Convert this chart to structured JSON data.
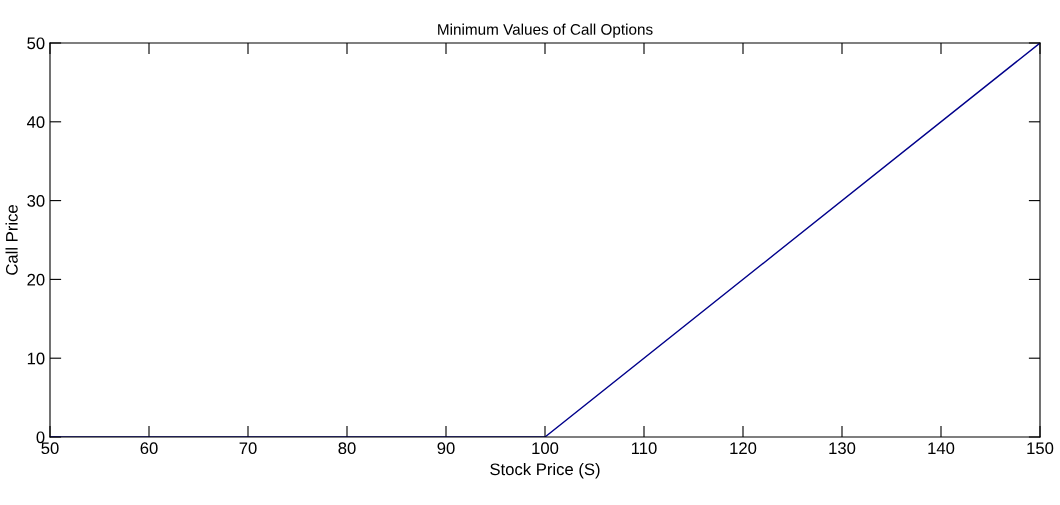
{
  "chart_data": {
    "type": "line",
    "title": "Minimum Values of Call Options",
    "xlabel": "Stock Price (S)",
    "ylabel": "Call Price",
    "x": [
      50,
      100,
      150
    ],
    "series": [
      {
        "color": "#00008b",
        "values": [
          0,
          0,
          50
        ]
      }
    ],
    "xlim": [
      50,
      150
    ],
    "ylim": [
      0,
      50
    ],
    "xticks": [
      50,
      60,
      70,
      80,
      90,
      100,
      110,
      120,
      130,
      140,
      150
    ],
    "yticks": [
      0,
      10,
      20,
      30,
      40,
      50
    ],
    "grid": false,
    "legend": false
  }
}
